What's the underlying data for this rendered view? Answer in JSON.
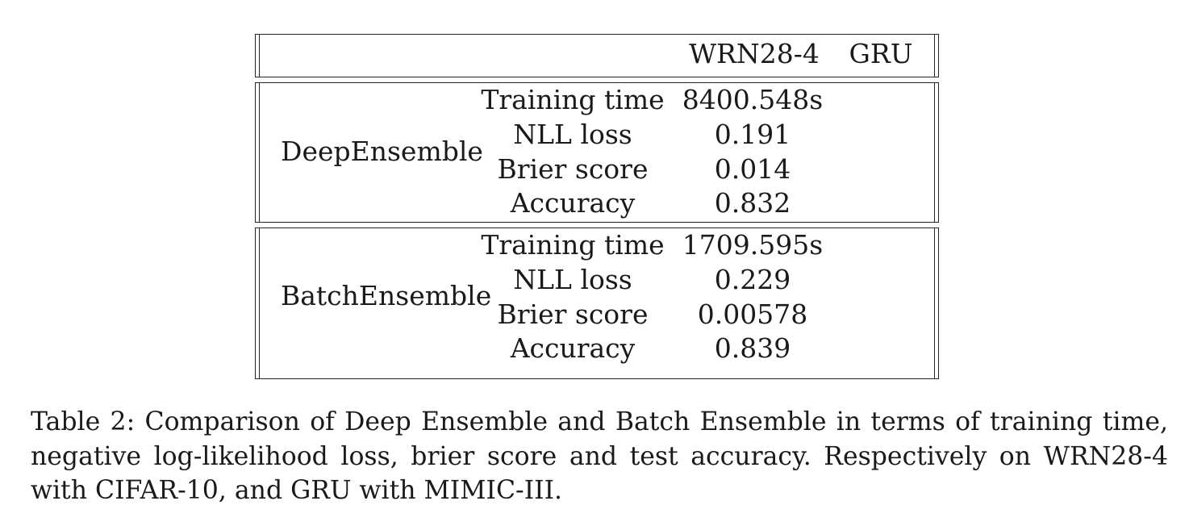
{
  "table": {
    "header": {
      "col1": "WRN28-4",
      "col2": "GRU"
    },
    "groups": [
      {
        "method": "DeepEnsemble",
        "rows": [
          {
            "metric": "Training time",
            "wrn": "8400.548s"
          },
          {
            "metric": "NLL loss",
            "wrn": "0.191"
          },
          {
            "metric": "Brier score",
            "wrn": "0.014"
          },
          {
            "metric": "Accuracy",
            "wrn": "0.832"
          }
        ]
      },
      {
        "method": "BatchEnsemble",
        "rows": [
          {
            "metric": "Training time",
            "wrn": "1709.595s"
          },
          {
            "metric": "NLL loss",
            "wrn": "0.229"
          },
          {
            "metric": "Brier score",
            "wrn": "0.00578"
          },
          {
            "metric": "Accuracy",
            "wrn": "0.839"
          }
        ]
      }
    ]
  },
  "caption": "Table 2: Comparison of Deep Ensemble and Batch Ensemble in terms of training time, negative log-likelihood loss, brier score and test accuracy. Respectively on WRN28-4 with CIFAR-10, and GRU with MIMIC-III."
}
